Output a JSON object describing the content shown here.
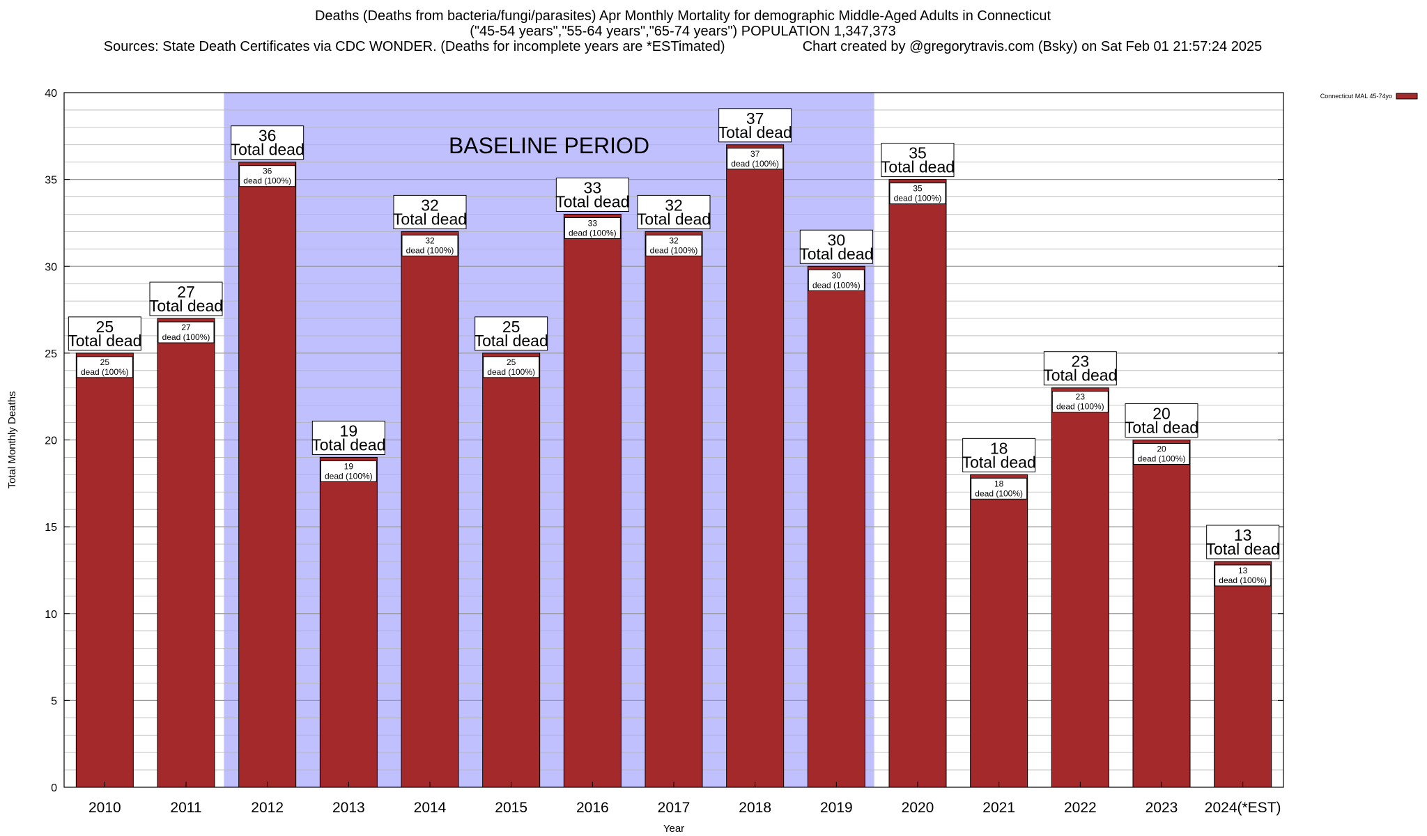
{
  "title": {
    "line1": "Deaths (Deaths from bacteria/fungi/parasites) Apr Monthly Mortality for demographic Middle-Aged Adults in Connecticut",
    "line2": "(\"45-54 years\",\"55-64 years\",\"65-74 years\") POPULATION 1,347,373",
    "line3_left": "Sources: State Death Certificates via CDC WONDER. (Deaths for incomplete years are *ESTimated)",
    "line3_right": "Chart created by @gregorytravis.com (Bsky) on Sat Feb 01 21:57:24 2025"
  },
  "chart_data": {
    "type": "bar",
    "xlabel": "Year",
    "ylabel": "Total Monthly Deaths",
    "ylim": [
      0,
      40
    ],
    "y_ticks": [
      0,
      5,
      10,
      15,
      20,
      25,
      30,
      35,
      40
    ],
    "categories": [
      "2010",
      "2011",
      "2012",
      "2013",
      "2014",
      "2015",
      "2016",
      "2017",
      "2018",
      "2019",
      "2020",
      "2021",
      "2022",
      "2023",
      "2024(*EST)"
    ],
    "series": [
      {
        "name": "Connecticut MAL 45-74yo",
        "values": [
          25,
          27,
          36,
          19,
          32,
          25,
          33,
          32,
          37,
          30,
          35,
          18,
          23,
          20,
          13
        ]
      }
    ],
    "bar_label_line2": "Total dead",
    "inner_label_suffix": "dead (100%)",
    "baseline_region": {
      "label": "BASELINE PERIOD",
      "start": "2012",
      "end": "2019"
    },
    "grid": true,
    "legend_position": "top-right"
  },
  "colors": {
    "bar": "#a4292b",
    "baseline": "#c0c0ff",
    "grid": "#b4b4b4"
  }
}
